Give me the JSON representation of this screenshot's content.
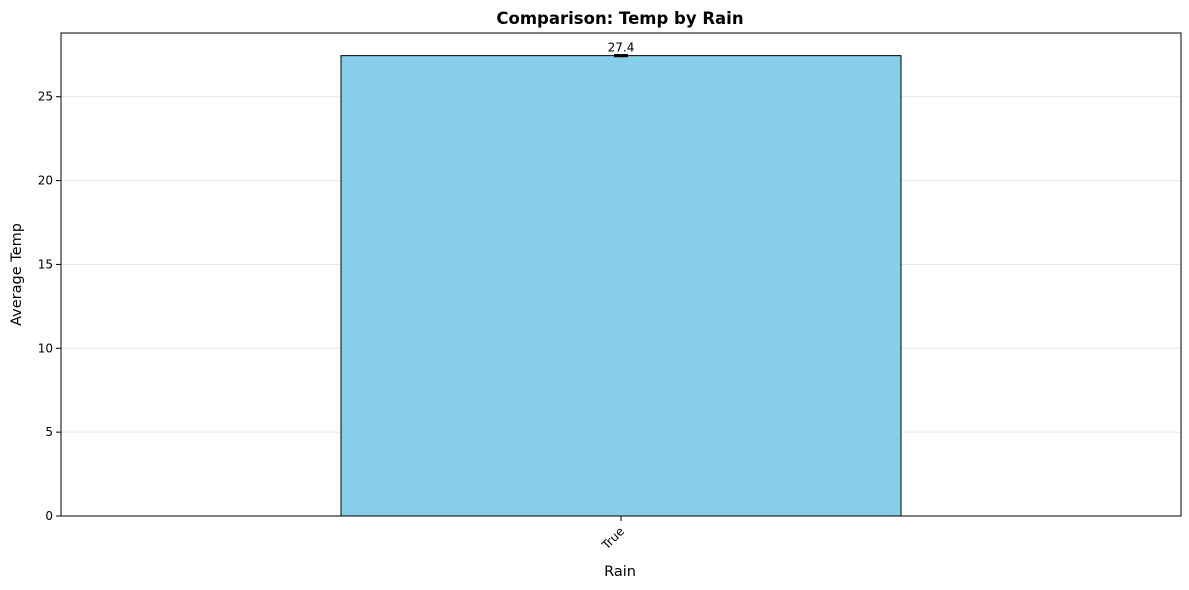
{
  "chart_data": {
    "type": "bar",
    "title": "Comparison: Temp by Rain",
    "xlabel": "Rain",
    "ylabel": "Average Temp",
    "categories": [
      "True"
    ],
    "values": [
      27.45
    ],
    "data_labels": [
      "27.4"
    ],
    "error": [
      0.05
    ],
    "ylim": [
      0,
      28.8
    ],
    "yticks": [
      0,
      5,
      10,
      15,
      20,
      25
    ],
    "ytick_labels": [
      "0",
      "5",
      "10",
      "15",
      "20",
      "25"
    ],
    "grid": "y",
    "bar_color": "#87CEEB",
    "edge_color": "#000000",
    "grid_color": "#e6e6e6"
  }
}
